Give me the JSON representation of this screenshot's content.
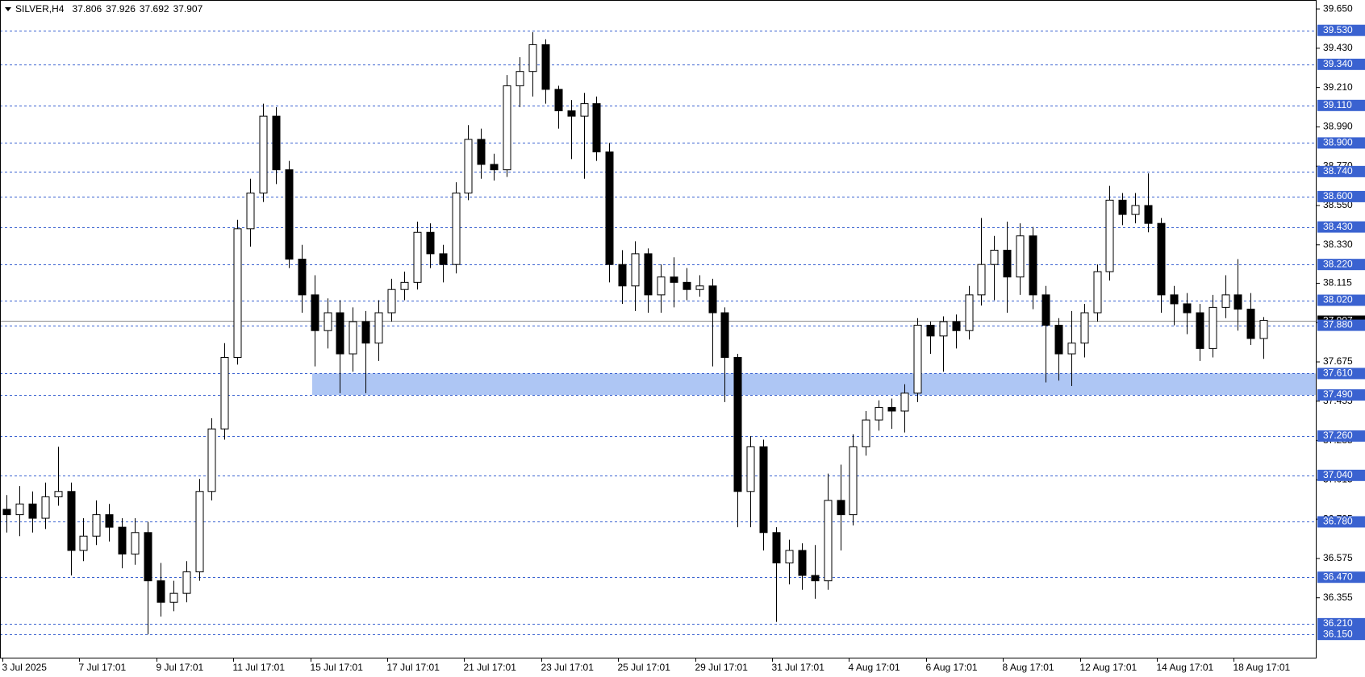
{
  "chart_data": {
    "type": "candlestick",
    "symbol": "SILVER,H4",
    "open": [
      36.85,
      36.82,
      36.88,
      36.8,
      36.92,
      36.95,
      36.62,
      36.7,
      36.82,
      36.75,
      36.6,
      36.72,
      36.45,
      36.33,
      36.38,
      36.5,
      36.95,
      37.3,
      37.7,
      38.42,
      38.62,
      39.05,
      38.75,
      38.25,
      38.05,
      37.85,
      37.95,
      37.72,
      37.9,
      37.78,
      37.95,
      38.08,
      38.12,
      38.4,
      38.28,
      38.22,
      38.62,
      38.92,
      38.78,
      38.75,
      39.22,
      39.3,
      39.45,
      39.2,
      39.08,
      39.05,
      39.12,
      38.85,
      38.22,
      38.1,
      38.28,
      38.05,
      38.15,
      38.12,
      38.08,
      38.1,
      37.95,
      37.7,
      36.95,
      37.2,
      36.72,
      36.55,
      36.62,
      36.48,
      36.45,
      36.9,
      36.82,
      37.2,
      37.35,
      37.42,
      37.4,
      37.5,
      37.88,
      37.82,
      37.9,
      37.85,
      38.05,
      38.22,
      38.3,
      38.15,
      38.38,
      38.05,
      37.88,
      37.72,
      37.78,
      37.95,
      38.18,
      38.58,
      38.5,
      38.55,
      38.45,
      38.05,
      38.0,
      37.95,
      37.75,
      37.98,
      38.05,
      37.97,
      37.806
    ],
    "high": [
      36.93,
      36.98,
      36.95,
      37.0,
      37.2,
      37.0,
      36.8,
      36.9,
      36.88,
      36.8,
      36.8,
      36.78,
      36.55,
      36.45,
      36.56,
      37.02,
      37.36,
      37.78,
      38.47,
      38.7,
      39.12,
      39.1,
      38.8,
      38.33,
      38.16,
      38.03,
      38.02,
      37.98,
      37.96,
      38.02,
      38.14,
      38.18,
      38.46,
      38.45,
      38.33,
      38.68,
      39.0,
      38.98,
      38.84,
      39.28,
      39.38,
      39.52,
      39.48,
      39.22,
      39.14,
      39.18,
      39.16,
      38.9,
      38.3,
      38.35,
      38.31,
      38.22,
      38.26,
      38.2,
      38.16,
      38.14,
      37.98,
      37.72,
      37.26,
      37.24,
      36.75,
      36.68,
      36.66,
      36.65,
      37.05,
      37.1,
      37.27,
      37.4,
      37.46,
      37.47,
      37.55,
      37.92,
      37.9,
      37.93,
      37.94,
      38.1,
      38.48,
      38.38,
      38.46,
      38.45,
      38.43,
      38.1,
      37.92,
      37.96,
      38.0,
      38.22,
      38.66,
      38.62,
      38.62,
      38.73,
      38.48,
      38.1,
      38.06,
      38.0,
      38.05,
      38.16,
      38.25,
      38.06,
      37.926
    ],
    "low": [
      36.72,
      36.7,
      36.72,
      36.74,
      36.87,
      36.48,
      36.56,
      36.65,
      36.67,
      36.52,
      36.54,
      36.15,
      36.25,
      36.28,
      36.33,
      36.45,
      36.9,
      37.24,
      37.66,
      38.32,
      38.57,
      38.67,
      38.2,
      37.95,
      37.65,
      37.75,
      37.5,
      37.62,
      37.5,
      37.68,
      37.9,
      38.02,
      38.08,
      38.2,
      38.12,
      38.17,
      38.58,
      38.7,
      38.69,
      38.71,
      39.1,
      39.16,
      39.12,
      38.98,
      38.81,
      38.7,
      38.8,
      38.12,
      38.0,
      37.96,
      37.95,
      37.95,
      37.98,
      38.02,
      38.04,
      37.65,
      37.45,
      36.75,
      36.75,
      36.62,
      36.22,
      36.43,
      36.4,
      36.35,
      36.4,
      36.62,
      36.76,
      37.15,
      37.29,
      37.3,
      37.28,
      37.45,
      37.72,
      37.62,
      37.75,
      37.8,
      37.99,
      38.02,
      37.95,
      38.05,
      37.97,
      37.56,
      37.57,
      37.54,
      37.7,
      37.9,
      38.13,
      38.44,
      38.45,
      38.4,
      37.95,
      37.88,
      37.83,
      37.68,
      37.7,
      37.92,
      37.85,
      37.77,
      37.692
    ],
    "close": [
      36.82,
      36.88,
      36.8,
      36.92,
      36.95,
      36.62,
      36.7,
      36.82,
      36.75,
      36.6,
      36.72,
      36.45,
      36.33,
      36.38,
      36.5,
      36.95,
      37.3,
      37.7,
      38.42,
      38.62,
      39.05,
      38.75,
      38.25,
      38.05,
      37.85,
      37.95,
      37.72,
      37.9,
      37.78,
      37.95,
      38.08,
      38.12,
      38.4,
      38.28,
      38.22,
      38.62,
      38.92,
      38.78,
      38.75,
      39.22,
      39.3,
      39.45,
      39.2,
      39.08,
      39.05,
      39.12,
      38.85,
      38.22,
      38.1,
      38.28,
      38.05,
      38.15,
      38.12,
      38.08,
      38.1,
      37.95,
      37.7,
      36.95,
      37.2,
      36.72,
      36.55,
      36.62,
      36.48,
      36.45,
      36.9,
      36.82,
      37.2,
      37.35,
      37.42,
      37.4,
      37.5,
      37.88,
      37.82,
      37.9,
      37.85,
      38.05,
      38.22,
      38.3,
      38.15,
      38.38,
      38.05,
      37.88,
      37.72,
      37.78,
      37.95,
      38.18,
      38.58,
      38.5,
      38.55,
      38.45,
      38.05,
      38.0,
      37.95,
      37.75,
      37.98,
      38.05,
      37.97,
      37.806,
      37.907
    ],
    "x_labels": [
      "3 Jul 2025",
      "7 Jul 17:01",
      "9 Jul 17:01",
      "11 Jul 17:01",
      "15 Jul 17:01",
      "17 Jul 17:01",
      "21 Jul 17:01",
      "23 Jul 17:01",
      "25 Jul 17:01",
      "29 Jul 17:01",
      "31 Jul 17:01",
      "4 Aug 17:01",
      "6 Aug 17:01",
      "8 Aug 17:01",
      "12 Aug 17:01",
      "14 Aug 17:01",
      "18 Aug 17:01"
    ],
    "ylim": [
      36.02,
      39.7
    ],
    "yticks": [
      {
        "value": 39.65,
        "label": "39.650"
      },
      {
        "value": 39.43,
        "label": "39.430"
      },
      {
        "value": 39.21,
        "label": "39.210"
      },
      {
        "value": 38.99,
        "label": "38.990"
      },
      {
        "value": 38.77,
        "label": "38.770"
      },
      {
        "value": 38.55,
        "label": "38.550"
      },
      {
        "value": 38.33,
        "label": "38.330"
      },
      38.115,
      37.895,
      37.675,
      37.455,
      37.235,
      37.015,
      36.795,
      36.575,
      36.355
    ],
    "levels": [
      {
        "value": 39.53,
        "label": "39.530"
      },
      {
        "value": 39.34,
        "label": "39.340"
      },
      {
        "value": 39.11,
        "label": "39.110"
      },
      {
        "value": 38.9,
        "label": "38.900"
      },
      {
        "value": 38.74,
        "label": "38.740"
      },
      {
        "value": 38.6,
        "label": "38.600"
      },
      {
        "value": 38.43,
        "label": "38.430"
      },
      {
        "value": 38.22,
        "label": "38.220"
      },
      {
        "value": 38.02,
        "label": "38.020"
      },
      {
        "value": 37.88,
        "label": "37.880"
      },
      {
        "value": 37.61,
        "label": "37.610"
      },
      {
        "value": 37.49,
        "label": "37.490"
      },
      {
        "value": 37.26,
        "label": "37.260"
      },
      {
        "value": 37.04,
        "label": "37.040"
      },
      {
        "value": 36.78,
        "label": "36.780"
      },
      {
        "value": 36.47,
        "label": "36.470"
      },
      {
        "value": 36.21,
        "label": "36.210"
      },
      {
        "value": 36.15,
        "label": "36.150"
      }
    ],
    "level_color": "#3a62d0",
    "zone_color": "#aec6f4",
    "bull_color": "#ffffff",
    "bear_color": "#000000"
  }
}
